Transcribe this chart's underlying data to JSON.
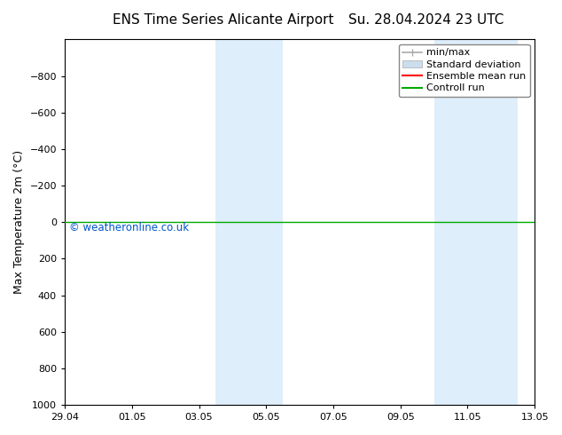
{
  "title_left": "ENS Time Series Alicante Airport",
  "title_right": "Su. 28.04.2024 23 UTC",
  "ylabel": "Max Temperature 2m (°C)",
  "ylim_bottom": 1000,
  "ylim_top": -1000,
  "yticks": [
    -800,
    -600,
    -400,
    -200,
    0,
    200,
    400,
    600,
    800,
    1000
  ],
  "xtick_labels": [
    "29.04",
    "01.05",
    "03.05",
    "05.05",
    "07.05",
    "09.05",
    "11.05",
    "13.05"
  ],
  "xtick_positions": [
    0,
    2,
    4,
    6,
    8,
    10,
    12,
    14
  ],
  "xlim": [
    0,
    14
  ],
  "shaded_bands": [
    {
      "x_start": 4.5,
      "x_end": 6.5
    },
    {
      "x_start": 11.0,
      "x_end": 13.5
    }
  ],
  "horizontal_line_y": 0,
  "control_run_color": "#00aa00",
  "ensemble_mean_color": "#ff0000",
  "background_color": "#ffffff",
  "plot_bg_color": "#ffffff",
  "shade_color": "#d0e8f8",
  "shade_alpha": 0.7,
  "watermark_text": "© weatheronline.co.uk",
  "watermark_color": "#0055cc",
  "legend_labels": [
    "min/max",
    "Standard deviation",
    "Ensemble mean run",
    "Controll run"
  ],
  "legend_colors": [
    "#aaaaaa",
    "#ccddee",
    "#ff0000",
    "#00aa00"
  ],
  "title_fontsize": 11,
  "axis_label_fontsize": 9,
  "tick_fontsize": 8,
  "legend_fontsize": 8
}
